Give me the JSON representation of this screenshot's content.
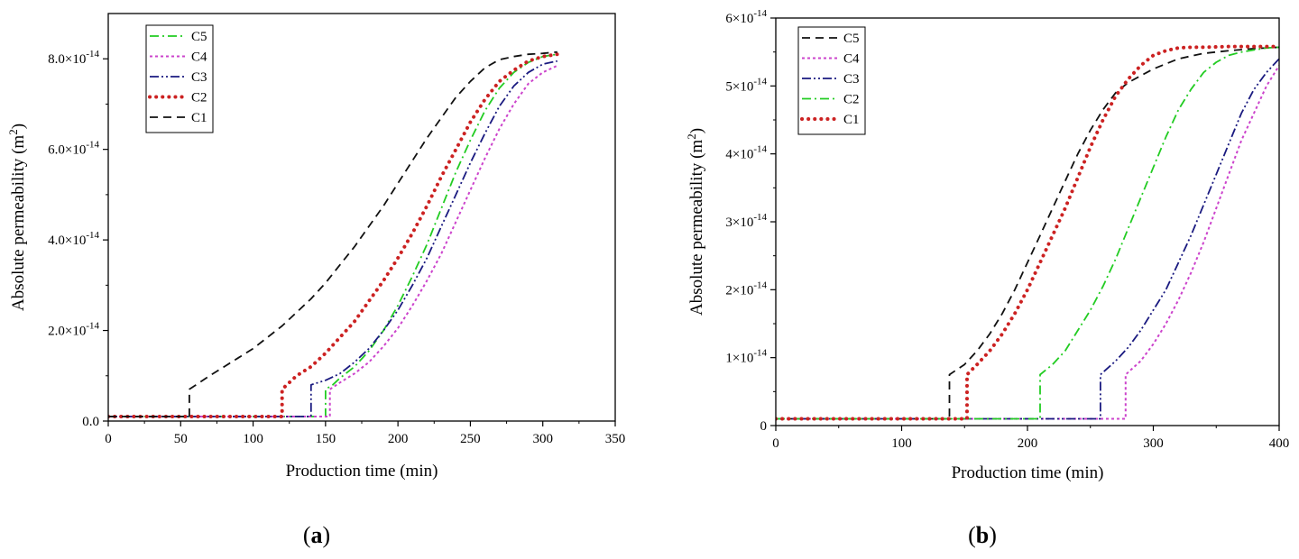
{
  "chart_data": [
    {
      "type": "line",
      "panel_label": "a",
      "xlabel": "Production time (min)",
      "ylabel": "Absolute permeability (m²)",
      "xlim": [
        0,
        350
      ],
      "ylim": [
        0,
        9e-14
      ],
      "xticks": [
        0,
        50,
        100,
        150,
        200,
        250,
        300,
        350
      ],
      "xtick_labels": [
        "0",
        "50",
        "100",
        "150",
        "200",
        "250",
        "300",
        "350"
      ],
      "yticks": [
        0,
        2e-14,
        4e-14,
        6e-14,
        8e-14
      ],
      "ytick_labels": [
        {
          "mant": "0.0",
          "exp": ""
        },
        {
          "mant": "2.0×10",
          "exp": "-14"
        },
        {
          "mant": "4.0×10",
          "exp": "-14"
        },
        {
          "mant": "6.0×10",
          "exp": "-14"
        },
        {
          "mant": "8.0×10",
          "exp": "-14"
        }
      ],
      "grid": false,
      "legend_position": "top-left",
      "legend_order": [
        "C5",
        "C4",
        "C3",
        "C2",
        "C1"
      ],
      "series": [
        {
          "name": "C5",
          "color": "#22cc22",
          "dash": "dashdot",
          "x": [
            0,
            150,
            150,
            155,
            160,
            170,
            180,
            190,
            200,
            210,
            220,
            230,
            240,
            250,
            260,
            270,
            280,
            290,
            300,
            310
          ],
          "y": [
            1e-15,
            1e-15,
            7e-15,
            8e-15,
            9.5e-15,
            1.2e-14,
            1.55e-14,
            2e-14,
            2.55e-14,
            3.2e-14,
            3.9e-14,
            4.7e-14,
            5.5e-14,
            6.2e-14,
            6.85e-14,
            7.35e-14,
            7.7e-14,
            7.92e-14,
            8.05e-14,
            8.1e-14
          ]
        },
        {
          "name": "C4",
          "color": "#cc44cc",
          "dash": "dot",
          "x": [
            0,
            153,
            153,
            160,
            170,
            180,
            190,
            200,
            210,
            220,
            230,
            240,
            250,
            260,
            270,
            280,
            290,
            300,
            310
          ],
          "y": [
            1e-15,
            1e-15,
            7e-15,
            8.5e-15,
            1.05e-14,
            1.3e-14,
            1.65e-14,
            2.05e-14,
            2.55e-14,
            3.1e-14,
            3.7e-14,
            4.4e-14,
            5.1e-14,
            5.8e-14,
            6.45e-14,
            7e-14,
            7.45e-14,
            7.7e-14,
            7.85e-14
          ]
        },
        {
          "name": "C3",
          "color": "#1a1a80",
          "dash": "dashdotdot",
          "x": [
            0,
            140,
            140,
            150,
            160,
            170,
            180,
            190,
            200,
            210,
            220,
            230,
            240,
            250,
            260,
            270,
            280,
            290,
            300,
            310
          ],
          "y": [
            1e-15,
            1e-15,
            8e-15,
            9e-15,
            1.05e-14,
            1.3e-14,
            1.6e-14,
            2e-14,
            2.45e-14,
            3e-14,
            3.6e-14,
            4.3e-14,
            5e-14,
            5.7e-14,
            6.35e-14,
            6.95e-14,
            7.4e-14,
            7.7e-14,
            7.88e-14,
            7.95e-14
          ]
        },
        {
          "name": "C2",
          "color": "#cc2222",
          "dash": "bigdot",
          "x": [
            0,
            120,
            120,
            130,
            140,
            150,
            160,
            170,
            180,
            190,
            200,
            210,
            220,
            230,
            240,
            250,
            260,
            270,
            280,
            290,
            300,
            310
          ],
          "y": [
            1e-15,
            1e-15,
            7e-15,
            1e-14,
            1.2e-14,
            1.5e-14,
            1.85e-14,
            2.2e-14,
            2.65e-14,
            3.1e-14,
            3.6e-14,
            4.15e-14,
            4.75e-14,
            5.4e-14,
            6e-14,
            6.6e-14,
            7.1e-14,
            7.5e-14,
            7.75e-14,
            7.95e-14,
            8.05e-14,
            8.1e-14
          ]
        },
        {
          "name": "C1",
          "color": "#111111",
          "dash": "dash",
          "x": [
            0,
            56,
            56,
            70,
            80,
            90,
            100,
            110,
            120,
            130,
            140,
            150,
            160,
            170,
            180,
            190,
            200,
            210,
            220,
            230,
            240,
            250,
            260,
            270,
            280,
            290,
            300,
            310
          ],
          "y": [
            1e-15,
            1e-15,
            7e-15,
            1e-14,
            1.2e-14,
            1.4e-14,
            1.6e-14,
            1.85e-14,
            2.1e-14,
            2.4e-14,
            2.7e-14,
            3.05e-14,
            3.45e-14,
            3.85e-14,
            4.3e-14,
            4.75e-14,
            5.25e-14,
            5.75e-14,
            6.25e-14,
            6.7e-14,
            7.15e-14,
            7.5e-14,
            7.8e-14,
            7.98e-14,
            8.05e-14,
            8.1e-14,
            8.12e-14,
            8.15e-14
          ]
        }
      ]
    },
    {
      "type": "line",
      "panel_label": "b",
      "xlabel": "Production time (min)",
      "ylabel": "Absolute permeability (m²)",
      "xlim": [
        0,
        400
      ],
      "ylim": [
        0,
        6e-14
      ],
      "xticks": [
        0,
        100,
        200,
        300,
        400
      ],
      "xtick_labels": [
        "0",
        "100",
        "200",
        "300",
        "400"
      ],
      "yticks": [
        0,
        1e-14,
        2e-14,
        3e-14,
        4e-14,
        5e-14,
        6e-14
      ],
      "ytick_labels": [
        {
          "mant": "0",
          "exp": ""
        },
        {
          "mant": "1×10",
          "exp": "-14"
        },
        {
          "mant": "2×10",
          "exp": "-14"
        },
        {
          "mant": "3×10",
          "exp": "-14"
        },
        {
          "mant": "4×10",
          "exp": "-14"
        },
        {
          "mant": "5×10",
          "exp": "-14"
        },
        {
          "mant": "6×10",
          "exp": "-14"
        }
      ],
      "grid": false,
      "legend_position": "top-left",
      "legend_order": [
        "C5",
        "C4",
        "C3",
        "C2",
        "C1"
      ],
      "series": [
        {
          "name": "C5",
          "color": "#111111",
          "dash": "dash",
          "x": [
            0,
            138,
            138,
            150,
            160,
            170,
            180,
            190,
            200,
            210,
            220,
            230,
            240,
            250,
            260,
            270,
            280,
            290,
            300,
            320,
            340,
            360,
            380,
            400
          ],
          "y": [
            1e-15,
            1e-15,
            7.5e-15,
            9e-15,
            1.1e-14,
            1.35e-14,
            1.65e-14,
            2e-14,
            2.4e-14,
            2.8e-14,
            3.2e-14,
            3.6e-14,
            4e-14,
            4.35e-14,
            4.65e-14,
            4.9e-14,
            5.05e-14,
            5.15e-14,
            5.25e-14,
            5.4e-14,
            5.48e-14,
            5.52e-14,
            5.55e-14,
            5.57e-14
          ]
        },
        {
          "name": "C4",
          "color": "#cc44cc",
          "dash": "dot",
          "x": [
            0,
            278,
            278,
            290,
            300,
            310,
            320,
            330,
            340,
            350,
            360,
            370,
            380,
            390,
            400
          ],
          "y": [
            1e-15,
            1e-15,
            7.5e-15,
            9.5e-15,
            1.2e-14,
            1.5e-14,
            1.85e-14,
            2.25e-14,
            2.7e-14,
            3.2e-14,
            3.7e-14,
            4.2e-14,
            4.6e-14,
            5e-14,
            5.3e-14
          ]
        },
        {
          "name": "C3",
          "color": "#1a1a80",
          "dash": "dashdotdot",
          "x": [
            0,
            258,
            258,
            270,
            280,
            290,
            300,
            310,
            320,
            330,
            340,
            350,
            360,
            370,
            380,
            390,
            400
          ],
          "y": [
            1e-15,
            1e-15,
            7.5e-15,
            9.5e-15,
            1.15e-14,
            1.4e-14,
            1.7e-14,
            2e-14,
            2.4e-14,
            2.8e-14,
            3.25e-14,
            3.7e-14,
            4.15e-14,
            4.6e-14,
            4.95e-14,
            5.2e-14,
            5.4e-14
          ]
        },
        {
          "name": "C2",
          "color": "#22cc22",
          "dash": "dashdot",
          "x": [
            0,
            210,
            210,
            220,
            230,
            240,
            250,
            260,
            270,
            280,
            290,
            300,
            310,
            320,
            330,
            340,
            350,
            360,
            370,
            380,
            390,
            400
          ],
          "y": [
            1e-15,
            1e-15,
            7.5e-15,
            9e-15,
            1.1e-14,
            1.4e-14,
            1.7e-14,
            2.05e-14,
            2.45e-14,
            2.9e-14,
            3.35e-14,
            3.8e-14,
            4.25e-14,
            4.65e-14,
            4.95e-14,
            5.2e-14,
            5.35e-14,
            5.45e-14,
            5.5e-14,
            5.53e-14,
            5.56e-14,
            5.57e-14
          ]
        },
        {
          "name": "C1",
          "color": "#cc2222",
          "dash": "bigdot",
          "x": [
            0,
            152,
            152,
            160,
            170,
            180,
            190,
            200,
            210,
            220,
            230,
            240,
            250,
            260,
            270,
            280,
            290,
            300,
            310,
            320,
            330,
            340,
            360,
            380,
            400
          ],
          "y": [
            1e-15,
            1e-15,
            7.5e-15,
            9e-15,
            1.1e-14,
            1.35e-14,
            1.65e-14,
            2e-14,
            2.4e-14,
            2.8e-14,
            3.2e-14,
            3.65e-14,
            4.1e-14,
            4.5e-14,
            4.85e-14,
            5.1e-14,
            5.3e-14,
            5.45e-14,
            5.52e-14,
            5.56e-14,
            5.57e-14,
            5.57e-14,
            5.58e-14,
            5.58e-14,
            5.58e-14
          ]
        }
      ]
    }
  ]
}
